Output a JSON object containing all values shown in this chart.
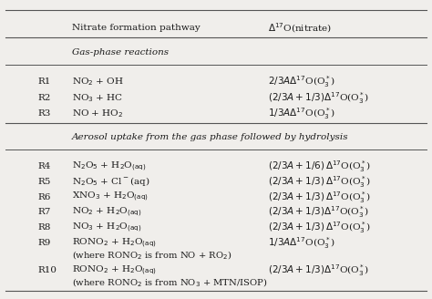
{
  "title_col1": "Nitrate formation pathway",
  "title_col2": "Δ17O(nitrate)",
  "section1_header": "Gas-phase reactions",
  "section2_header": "Aerosol uptake from the gas phase followed by hydrolysis",
  "rows": [
    {
      "label": "R1",
      "pathway": "NO$_2$ + OH",
      "delta": "$2/3A\\Delta^{17}$O(O$_3^*$)"
    },
    {
      "label": "R2",
      "pathway": "NO$_3$ + HC",
      "delta": "$(2/3A + 1/3)\\Delta^{17}$O(O$_3^*$)"
    },
    {
      "label": "R3",
      "pathway": "NO + HO$_2$",
      "delta": "$1/3A\\Delta^{17}$O(O$_3^*$)"
    },
    {
      "label": "R4",
      "pathway": "N$_2$O$_5$ + H$_2$O$_{\\mathrm{(aq)}}$",
      "delta": "$(2/3A + 1/6)\\,\\Delta^{17}$O(O$_3^*$)"
    },
    {
      "label": "R5",
      "pathway": "N$_2$O$_5$ + Cl$^-$(aq)",
      "delta": "$(2/3A + 1/3)\\,\\Delta^{17}$O(O$_3^*$)"
    },
    {
      "label": "R6",
      "pathway": "XNO$_3$ + H$_2$O$_{\\mathrm{(aq)}}$",
      "delta": "$(2/3A + 1/3)\\,\\Delta^{17}$O(O$_3^*$)"
    },
    {
      "label": "R7",
      "pathway": "NO$_2$ + H$_2$O$_{\\mathrm{(aq)}}$",
      "delta": "$(2/3A + 1/3)\\Delta^{17}$O(O$_3^*$)"
    },
    {
      "label": "R8",
      "pathway": "NO$_3$ + H$_2$O$_{\\mathrm{(aq)}}$",
      "delta": "$(2/3A + 1/3)\\,\\Delta^{17}$O(O$_3^*$)"
    },
    {
      "label": "R9",
      "pathway": "RONO$_2$ + H$_2$O$_{\\mathrm{(aq)}}$",
      "delta": "$1/3A\\Delta^{17}$O(O$_3^*$)",
      "note": "(where RONO$_2$ is from NO + RO$_2$)"
    },
    {
      "label": "R10",
      "pathway": "RONO$_2$ + H$_2$O$_{\\mathrm{(aq)}}$",
      "delta": "$(2/3A + 1/3)\\Delta^{17}$O(O$_3^*$)",
      "note": "(where RONO$_2$ is from NO$_3$ + MTN/ISOP)"
    }
  ],
  "bg_color": "#f0eeeb",
  "text_color": "#1a1a1a",
  "line_color": "#555555",
  "font_size": 7.5,
  "header_font_size": 7.5,
  "section_font_size": 7.5
}
